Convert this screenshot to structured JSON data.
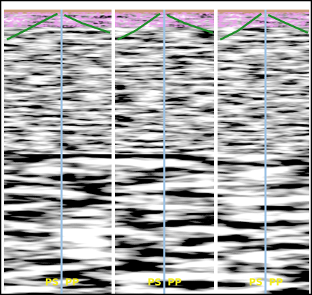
{
  "panels": [
    {
      "left_label": "PS",
      "right_label": "PP"
    },
    {
      "left_label": "PS",
      "right_label": "PP"
    },
    {
      "left_label": "PS",
      "right_label": "PP"
    }
  ]
}
